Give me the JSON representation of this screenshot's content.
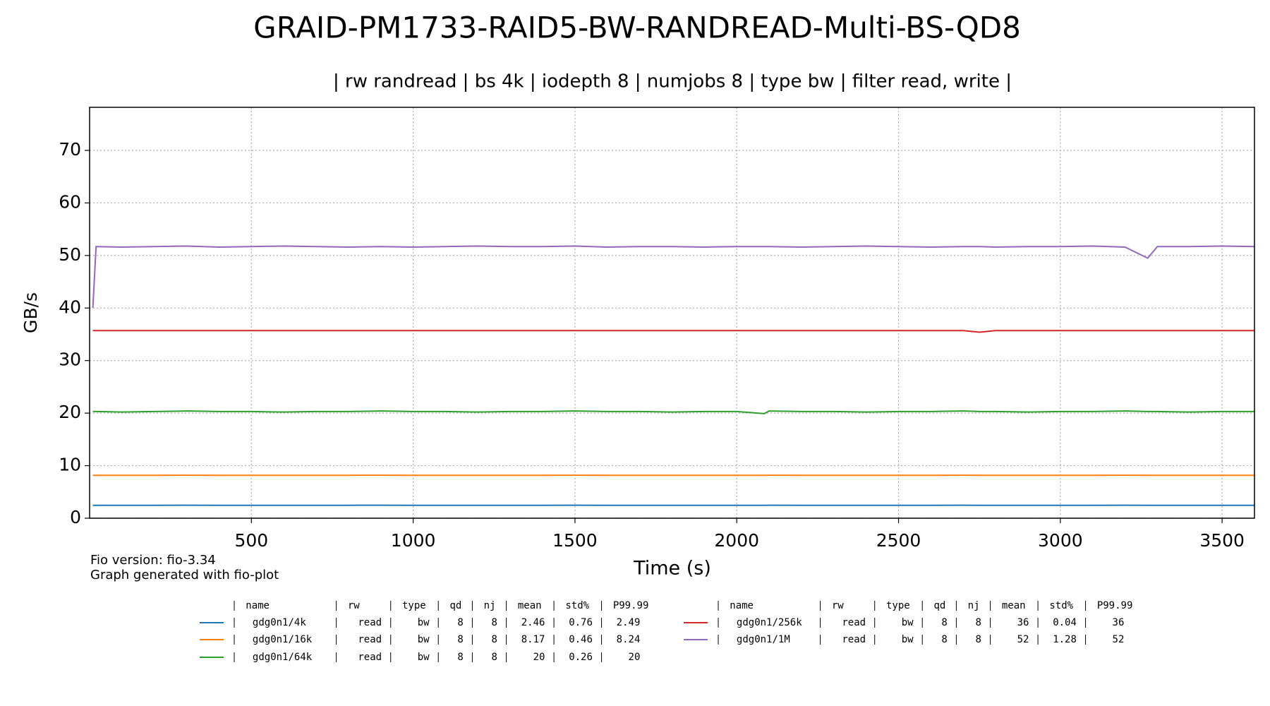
{
  "chart_data": {
    "type": "line",
    "title": "GRAID-PM1733-RAID5-BW-RANDREAD-Multi-BS-QD8",
    "subtitle": "| rw randread | bs 4k | iodepth 8 | numjobs 8 | type bw | filter read, write |",
    "x_label": "Time (s)",
    "y_label": "GB/s",
    "notes": [
      "Fio version: fio-3.34",
      "Graph generated with fio-plot"
    ],
    "xlim": [
      0,
      3600
    ],
    "ylim": [
      0,
      78.2
    ],
    "xticks": [
      500,
      1000,
      1500,
      2000,
      2500,
      3000,
      3500
    ],
    "yticks": [
      0,
      10,
      20,
      30,
      40,
      50,
      60,
      70
    ],
    "grid": true,
    "legend_columns": [
      "name",
      "rw",
      "type",
      "qd",
      "nj",
      "mean",
      "std%",
      "P99.99"
    ],
    "x": [
      10,
      20,
      100,
      200,
      300,
      400,
      500,
      600,
      700,
      800,
      900,
      1000,
      1100,
      1200,
      1300,
      1400,
      1500,
      1600,
      1700,
      1800,
      1900,
      2000,
      2085,
      2100,
      2200,
      2300,
      2400,
      2500,
      2600,
      2700,
      2750,
      2800,
      2900,
      3000,
      3100,
      3200,
      3270,
      3300,
      3400,
      3500,
      3600
    ],
    "series": [
      {
        "name": "gdg0n1/4k",
        "color": "#1f77b4",
        "rw": "read",
        "kind": "bw",
        "qd": 8,
        "nj": 8,
        "mean": 2.46,
        "std": 0.76,
        "p99_99": 2.49,
        "values": [
          2.46,
          2.46,
          2.45,
          2.46,
          2.47,
          2.46,
          2.46,
          2.45,
          2.46,
          2.46,
          2.47,
          2.46,
          2.46,
          2.45,
          2.46,
          2.46,
          2.47,
          2.46,
          2.46,
          2.45,
          2.46,
          2.46,
          2.46,
          2.47,
          2.46,
          2.46,
          2.45,
          2.46,
          2.46,
          2.47,
          2.46,
          2.46,
          2.45,
          2.46,
          2.46,
          2.47,
          2.46,
          2.46,
          2.45,
          2.46,
          2.46
        ]
      },
      {
        "name": "gdg0n1/16k",
        "color": "#ff7f0e",
        "rw": "read",
        "kind": "bw",
        "qd": 8,
        "nj": 8,
        "mean": 8.17,
        "std": 0.46,
        "p99_99": 8.24,
        "values": [
          8.17,
          8.17,
          8.16,
          8.17,
          8.18,
          8.17,
          8.17,
          8.16,
          8.17,
          8.17,
          8.18,
          8.17,
          8.17,
          8.16,
          8.17,
          8.17,
          8.18,
          8.17,
          8.17,
          8.16,
          8.17,
          8.17,
          8.17,
          8.18,
          8.17,
          8.17,
          8.16,
          8.17,
          8.17,
          8.18,
          8.17,
          8.17,
          8.16,
          8.17,
          8.17,
          8.18,
          8.17,
          8.17,
          8.16,
          8.17,
          8.17
        ]
      },
      {
        "name": "gdg0n1/64k",
        "color": "#2ca02c",
        "rw": "read",
        "kind": "bw",
        "qd": 8,
        "nj": 8,
        "mean": 20,
        "std": 0.26,
        "p99_99": 20,
        "values": [
          20.3,
          20.3,
          20.2,
          20.3,
          20.4,
          20.3,
          20.3,
          20.2,
          20.3,
          20.3,
          20.4,
          20.3,
          20.3,
          20.2,
          20.3,
          20.3,
          20.4,
          20.3,
          20.3,
          20.2,
          20.3,
          20.3,
          19.9,
          20.4,
          20.3,
          20.3,
          20.2,
          20.3,
          20.3,
          20.4,
          20.3,
          20.3,
          20.2,
          20.3,
          20.3,
          20.4,
          20.3,
          20.3,
          20.2,
          20.3,
          20.3
        ]
      },
      {
        "name": "gdg0n1/256k",
        "color": "#d62728",
        "rw": "read",
        "kind": "bw",
        "qd": 8,
        "nj": 8,
        "mean": 36,
        "std": 0.04,
        "p99_99": 36,
        "values": [
          35.7,
          35.7,
          35.7,
          35.7,
          35.7,
          35.7,
          35.7,
          35.7,
          35.7,
          35.7,
          35.7,
          35.7,
          35.7,
          35.7,
          35.7,
          35.7,
          35.7,
          35.7,
          35.7,
          35.7,
          35.7,
          35.7,
          35.7,
          35.7,
          35.7,
          35.7,
          35.7,
          35.7,
          35.7,
          35.7,
          35.4,
          35.7,
          35.7,
          35.7,
          35.7,
          35.7,
          35.7,
          35.7,
          35.7,
          35.7,
          35.7
        ]
      },
      {
        "name": "gdg0n1/1M",
        "color": "#9467bd",
        "rw": "read",
        "kind": "bw",
        "qd": 8,
        "nj": 8,
        "mean": 52,
        "std": 1.28,
        "p99_99": 52,
        "values": [
          40,
          51.7,
          51.6,
          51.7,
          51.8,
          51.6,
          51.7,
          51.8,
          51.7,
          51.6,
          51.7,
          51.6,
          51.7,
          51.8,
          51.7,
          51.7,
          51.8,
          51.6,
          51.7,
          51.7,
          51.6,
          51.7,
          51.7,
          51.7,
          51.6,
          51.7,
          51.8,
          51.7,
          51.6,
          51.7,
          51.7,
          51.6,
          51.7,
          51.7,
          51.8,
          51.6,
          49.5,
          51.7,
          51.7,
          51.8,
          51.7
        ]
      }
    ]
  }
}
